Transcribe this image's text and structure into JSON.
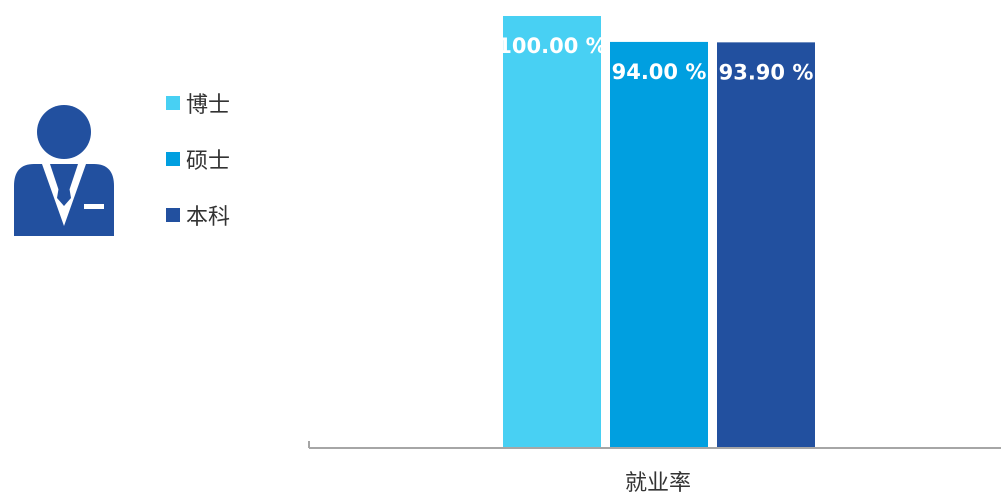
{
  "chart_data": {
    "type": "bar",
    "categories": [
      "就业率"
    ],
    "series": [
      {
        "name": "博士",
        "values": [
          100.0
        ],
        "label": "100.00 %",
        "color": "#48d0f3"
      },
      {
        "name": "硕士",
        "values": [
          94.0
        ],
        "label": "94.00 %",
        "color": "#009fe0"
      },
      {
        "name": "本科",
        "values": [
          93.9
        ],
        "label": "93.90 %",
        "color": "#22509f"
      }
    ],
    "title": "",
    "xlabel": "",
    "ylabel": "",
    "ylim": [
      0,
      100
    ],
    "grid": false,
    "legend": "left",
    "axis_color": "#a6a6a6"
  },
  "icon": {
    "name": "businessman-icon",
    "color": "#22509f"
  }
}
